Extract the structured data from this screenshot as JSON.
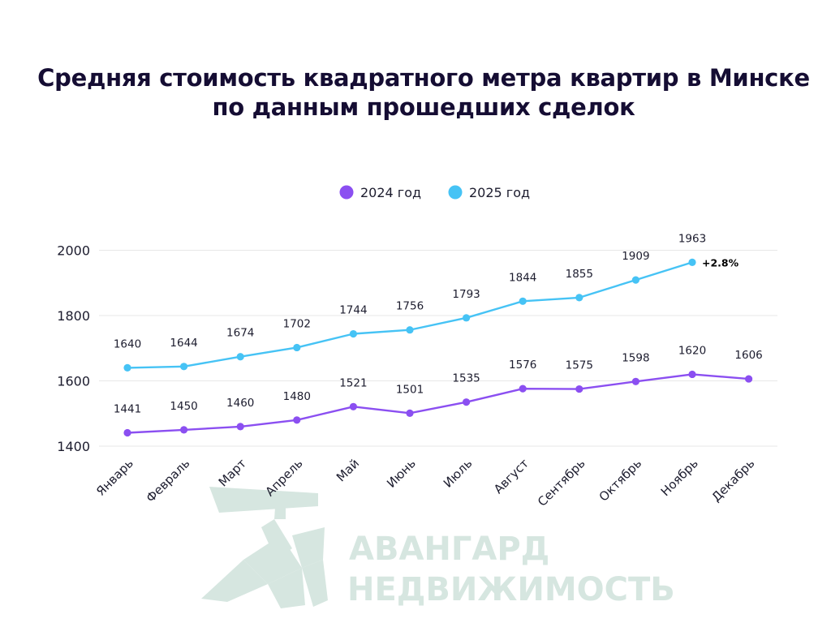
{
  "title": "Средняя стоимость квадратного метра квартир в Минске по данным прошедших сделок",
  "watermark": {
    "line1": "АВАНГАРД",
    "line2": "НЕДВИЖИМОСТЬ"
  },
  "chart_data": {
    "type": "line",
    "title": "Средняя стоимость квадратного метра квартир в Минске по данным прошедших сделок",
    "categories": [
      "Январь",
      "Февраль",
      "Март",
      "Апрель",
      "Май",
      "Июнь",
      "Июль",
      "Август",
      "Сентябрь",
      "Октябрь",
      "Ноябрь",
      "Декабрь"
    ],
    "series": [
      {
        "name": "2024 год",
        "color": "#8b4ff1",
        "values": [
          1441,
          1450,
          1460,
          1480,
          1521,
          1501,
          1535,
          1576,
          1575,
          1598,
          1620,
          1606
        ]
      },
      {
        "name": "2025 год",
        "color": "#46c3f5",
        "values": [
          1640,
          1644,
          1674,
          1702,
          1744,
          1756,
          1793,
          1844,
          1855,
          1909,
          1963,
          null
        ]
      }
    ],
    "yticks": [
      1400,
      1600,
      1800,
      2000
    ],
    "ylim": [
      1400,
      2000
    ],
    "grid": true,
    "legend": "top-center",
    "annotations": [
      {
        "series": "2025 год",
        "category": "Ноябрь",
        "text": "+2.8%"
      }
    ]
  }
}
